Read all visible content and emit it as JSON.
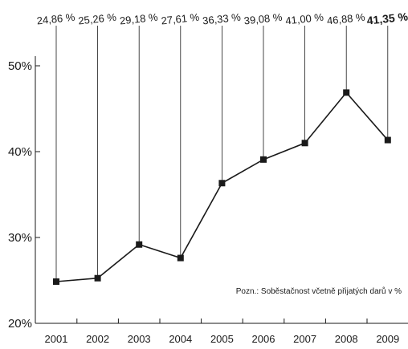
{
  "chart_data": {
    "type": "line",
    "categories": [
      "2001",
      "2002",
      "2003",
      "2004",
      "2005",
      "2006",
      "2007",
      "2008",
      "2009"
    ],
    "values": [
      24.86,
      25.26,
      29.18,
      27.61,
      36.33,
      39.08,
      41.0,
      46.88,
      41.35
    ],
    "data_labels": [
      "24,86 %",
      "25,26 %",
      "29,18 %",
      "27,61 %",
      "36,33 %",
      "39,08 %",
      "41,00 %",
      "46,88 %",
      "41,35 %"
    ],
    "highlight_index": 8,
    "y_ticks": [
      {
        "value": 20,
        "label": "20%"
      },
      {
        "value": 30,
        "label": "30%"
      },
      {
        "value": 40,
        "label": "40%"
      },
      {
        "value": 50,
        "label": "50%"
      }
    ],
    "ylim": [
      20,
      51
    ],
    "grid": false,
    "note": "Pozn.: Soběstačnost včetně přijatých darů v %",
    "colors": {
      "line": "#1a1a1a",
      "marker": "#1a1a1a",
      "drop_line": "#1a1a1a"
    }
  }
}
